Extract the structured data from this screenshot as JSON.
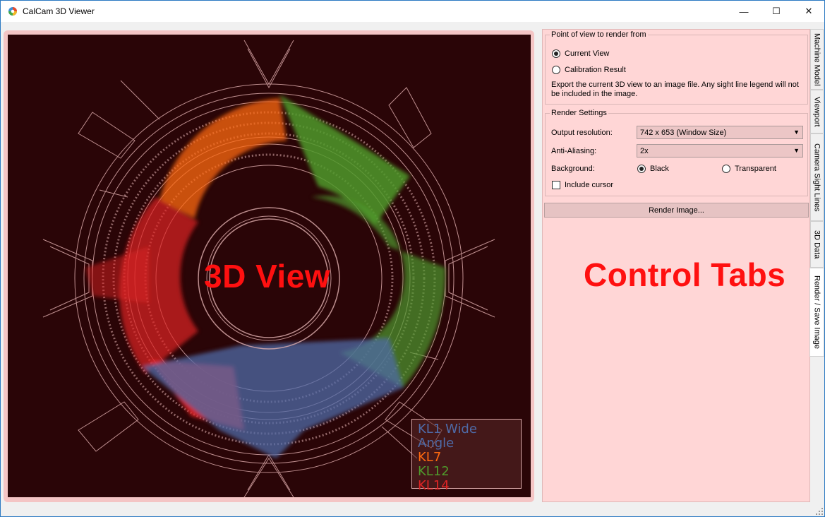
{
  "window": {
    "title": "CalCam 3D Viewer",
    "controls": {
      "minimize": "—",
      "maximize": "☐",
      "close": "✕"
    }
  },
  "view": {
    "overlay_label": "3D View",
    "legend": [
      {
        "label": "KL1 Wide Angle",
        "color": "#4f6ba8"
      },
      {
        "label": "KL7",
        "color": "#ff6a10"
      },
      {
        "label": "KL12",
        "color": "#4f9a2c"
      },
      {
        "label": "KL14",
        "color": "#e02424"
      }
    ]
  },
  "panel": {
    "overlay_label": "Control Tabs",
    "pov_group": {
      "title": "Point of view to render from",
      "options": [
        "Current View",
        "Calibration Result"
      ],
      "selected": "Current View",
      "description": "Export the current 3D view to an image file. Any sight line legend will not be included in the image."
    },
    "render_group": {
      "title": "Render Settings",
      "resolution_label": "Output resolution:",
      "resolution_value": "742 x 653 (Window Size)",
      "aa_label": "Anti-Aliasing:",
      "aa_value": "2x",
      "background_label": "Background:",
      "background_options": [
        "Black",
        "Transparent"
      ],
      "background_selected": "Black",
      "cursor_label": "Include cursor"
    },
    "render_button": "Render Image..."
  },
  "tabs": [
    "Machine Model",
    "Viewport",
    "Camera Sight Lines",
    "3D Data",
    "Render / Save Image"
  ],
  "active_tab": "Render / Save Image"
}
